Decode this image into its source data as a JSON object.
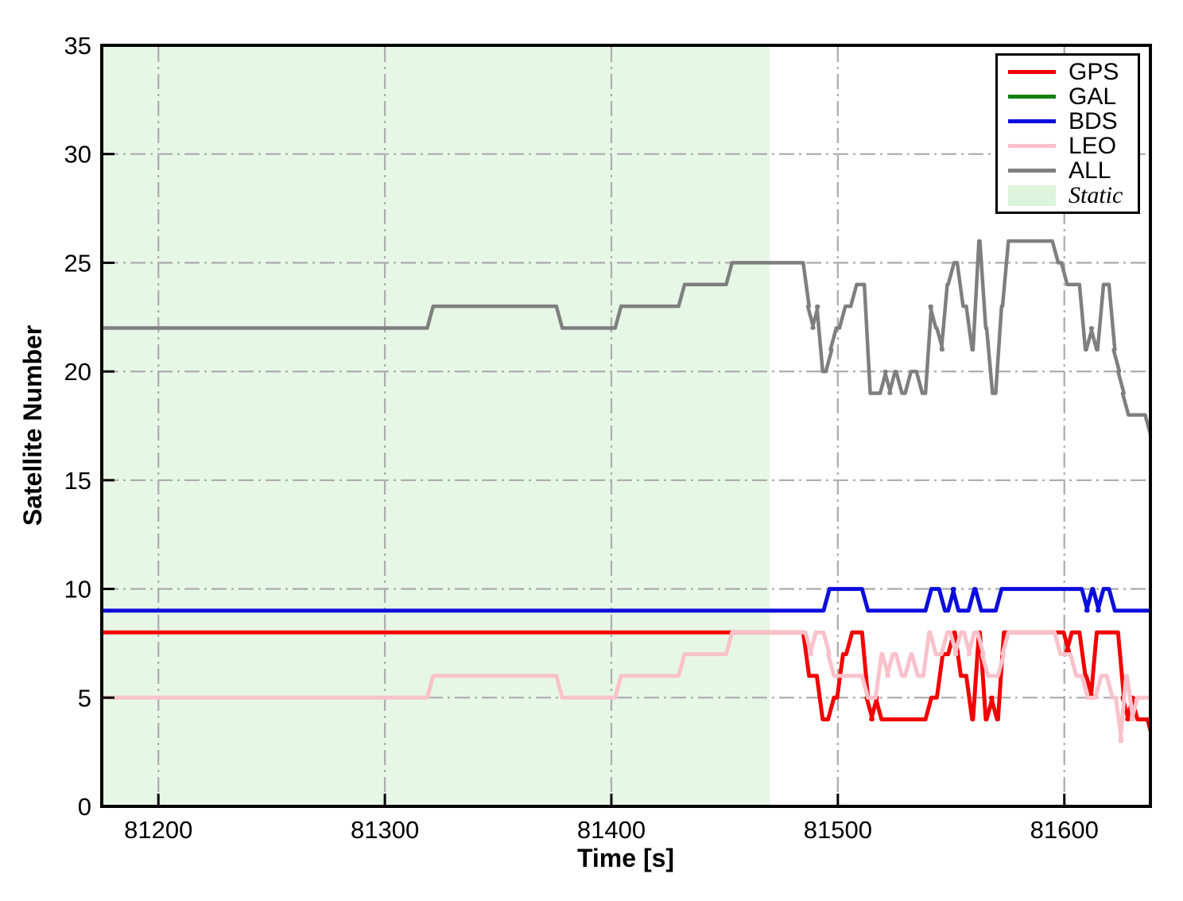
{
  "chart_data": {
    "type": "line",
    "title": "",
    "xlabel": "Time [s]",
    "ylabel": "Satellite Number",
    "xlim": [
      81175,
      81638
    ],
    "ylim": [
      0,
      35
    ],
    "xticks": [
      81200,
      81300,
      81400,
      81500,
      81600
    ],
    "yticks": [
      0,
      5,
      10,
      15,
      20,
      25,
      30,
      35
    ],
    "grid": {
      "shown": true,
      "style": "dash-dot",
      "color": "#aeaeae"
    },
    "legend": {
      "position": "upper-right",
      "entries": [
        "GPS",
        "GAL",
        "BDS",
        "LEO",
        "ALL",
        "Static"
      ]
    },
    "static_region": {
      "label": "Static",
      "xstart": 81175,
      "xend": 81470,
      "fill_color": "#e7f7e6",
      "legend_patch_color": "#dcf3dc"
    },
    "series": [
      {
        "name": "GPS",
        "color": "#f20000",
        "width": 5,
        "steps": {
          "t": [
            81175,
            81486,
            81492,
            81497,
            81501,
            81505,
            81512,
            81514,
            81516,
            81518,
            81540,
            81545,
            81550,
            81553,
            81558,
            81561,
            81564,
            81567,
            81569,
            81572,
            81601,
            81602,
            81608,
            81611,
            81613,
            81625,
            81627,
            81629,
            81631,
            81638,
            81640
          ],
          "v": [
            8,
            6,
            4,
            5,
            7,
            8,
            5,
            4,
            5,
            4,
            5,
            7,
            8,
            6,
            4,
            8,
            4,
            5,
            4,
            8,
            7,
            8,
            6,
            5,
            8,
            5,
            4,
            5,
            4,
            3,
            3
          ]
        }
      },
      {
        "name": "GAL",
        "color": "#108010",
        "width": 4,
        "steps": {
          "t": [
            81175,
            81640
          ],
          "v": [
            0,
            0
          ]
        }
      },
      {
        "name": "BDS",
        "color": "#0d0ddc",
        "width": 5,
        "steps": {
          "t": [
            81175,
            81495,
            81512,
            81540,
            81546,
            81550,
            81552,
            81559,
            81562,
            81571,
            81609,
            81611,
            81614,
            81616,
            81621,
            81640
          ],
          "v": [
            9,
            10,
            9,
            10,
            9,
            10,
            9,
            10,
            9,
            10,
            9,
            10,
            9,
            10,
            9,
            9
          ]
        }
      },
      {
        "name": "LEO",
        "color": "#f9c2cb",
        "width": 5,
        "steps": {
          "t": [
            81175,
            81320,
            81377,
            81403,
            81431,
            81452,
            81487,
            81489,
            81495,
            81497,
            81512,
            81518,
            81521,
            81523,
            81527,
            81531,
            81534,
            81539,
            81542,
            81547,
            81551,
            81553,
            81557,
            81559,
            81563,
            81565,
            81572,
            81574,
            81597,
            81604,
            81609,
            81615,
            81620,
            81624,
            81626,
            81629,
            81631,
            81640
          ],
          "v": [
            5,
            6,
            5,
            6,
            7,
            8,
            7,
            8,
            7,
            6,
            5,
            7,
            6,
            7,
            6,
            7,
            6,
            8,
            7,
            8,
            7,
            8,
            7,
            8,
            7,
            6,
            7,
            8,
            7,
            6,
            5,
            6,
            5,
            3,
            6,
            4,
            5,
            5
          ]
        }
      },
      {
        "name": "ALL",
        "color": "#7f7f7f",
        "width": 4.5,
        "steps": {
          "t": [
            81175,
            81320,
            81377,
            81403,
            81431,
            81452,
            81486,
            81488,
            81490,
            81492,
            81496,
            81498,
            81502,
            81507,
            81513,
            81520,
            81522,
            81524,
            81527,
            81531,
            81536,
            81540,
            81542,
            81545,
            81547,
            81550,
            81554,
            81558,
            81561,
            81564,
            81567,
            81571,
            81574,
            81596,
            81600,
            81608,
            81611,
            81613,
            81616,
            81621,
            81623,
            81625,
            81627,
            81637,
            81640
          ],
          "v": [
            22,
            23,
            22,
            23,
            24,
            25,
            23,
            22,
            23,
            20,
            21,
            22,
            23,
            24,
            19,
            20,
            19,
            20,
            19,
            20,
            19,
            23,
            22,
            21,
            24,
            25,
            23,
            21,
            26,
            22,
            19,
            23,
            26,
            25,
            24,
            21,
            22,
            21,
            24,
            21,
            20,
            19,
            18,
            17,
            17
          ]
        }
      }
    ]
  }
}
